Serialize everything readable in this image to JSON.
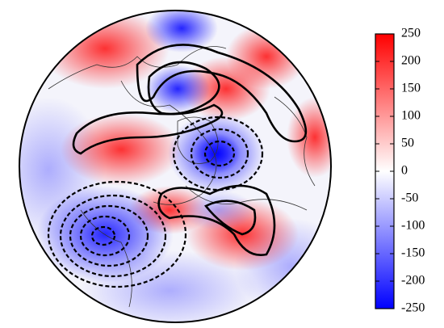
{
  "colorbar": {
    "range": [
      -250,
      250
    ],
    "ticks": [
      250,
      200,
      150,
      100,
      50,
      0,
      -50,
      -100,
      -150,
      -200,
      -250
    ]
  }
}
